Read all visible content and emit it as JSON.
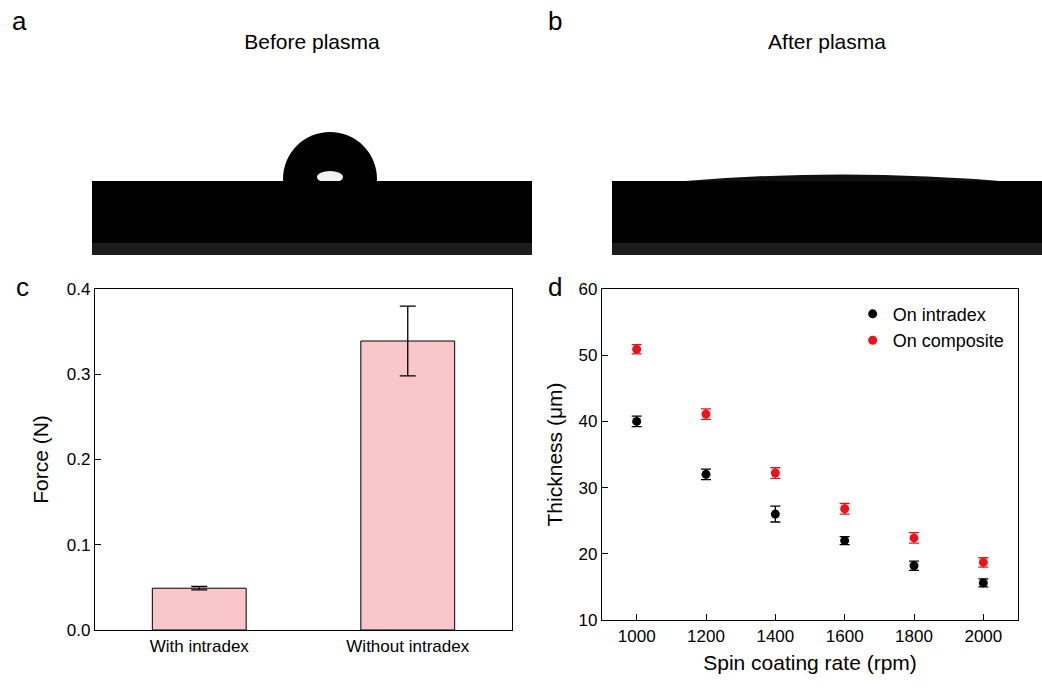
{
  "images": [
    {
      "annotations": [
        "a"
      ],
      "title": "Before plasma"
    },
    {
      "annotations": [
        "b"
      ],
      "title": "After plasma"
    }
  ],
  "chart_data": [
    {
      "type": "bar",
      "annotations": [
        "c"
      ],
      "categories": [
        "With intradex",
        "Without intradex"
      ],
      "values": [
        0.049,
        0.339
      ],
      "errors": [
        0.002,
        0.041
      ],
      "color": "#f9c6c9",
      "y_label": "Force (N)",
      "ylim": [
        0,
        0.4
      ],
      "yticks": [
        {
          "value": 0,
          "label": "0.0"
        },
        0.1,
        0.2,
        0.3,
        0.4
      ],
      "grid": false
    },
    {
      "type": "scatter",
      "annotations": [
        "d"
      ],
      "x": [
        1000,
        1200,
        1400,
        1600,
        1800,
        2000
      ],
      "series": [
        {
          "name": "On intradex",
          "color": "#000000",
          "marker": "circle",
          "values": [
            40.0,
            32.0,
            26.0,
            22.0,
            18.2,
            15.6
          ],
          "errors": [
            0.8,
            0.8,
            1.2,
            0.6,
            0.7,
            0.6
          ]
        },
        {
          "name": "On composite",
          "color": "#e8141c",
          "marker": "circle",
          "values": [
            50.9,
            41.1,
            32.2,
            26.8,
            22.4,
            18.7
          ],
          "errors": [
            0.7,
            0.8,
            0.8,
            0.8,
            0.8,
            0.7
          ]
        }
      ],
      "x_label": "Spin coating rate (rpm)",
      "y_label": "Thickness (μm)",
      "xlim": [
        900,
        2100
      ],
      "xticks": [
        1000,
        1200,
        1400,
        1600,
        1800,
        2000
      ],
      "ylim": [
        10,
        60
      ],
      "yticks": [
        10,
        20,
        30,
        40,
        50,
        60
      ],
      "legend": "upper right",
      "grid": false
    }
  ]
}
